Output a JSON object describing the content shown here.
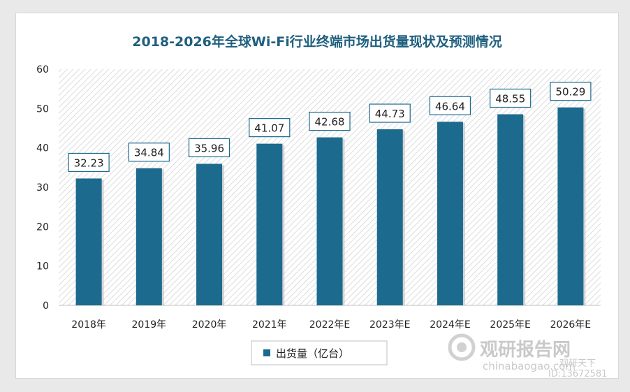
{
  "chart_data": {
    "type": "bar",
    "title": "2018-2026年全球Wi-Fi行业终端市场出货量现状及预测情况",
    "categories": [
      "2018年",
      "2019年",
      "2020年",
      "2021年",
      "2022年E",
      "2023年E",
      "2024年E",
      "2025年E",
      "2026年E"
    ],
    "series": [
      {
        "name": "出货量（亿台）",
        "values": [
          32.23,
          34.84,
          35.96,
          41.07,
          42.68,
          44.73,
          46.64,
          48.55,
          50.29
        ]
      }
    ],
    "data_labels": [
      "32.23",
      "34.84",
      "35.96",
      "41.07",
      "42.68",
      "44.73",
      "46.64",
      "48.55",
      "50.29"
    ],
    "ylim": [
      0,
      60
    ],
    "yticks": [
      0,
      10,
      20,
      30,
      40,
      50,
      60
    ],
    "grid": false,
    "legend_position": "bottom",
    "colors": {
      "bar": "#1c6a8e",
      "title": "#1f5f7f",
      "plot_hatch": "#d9d9d9"
    }
  },
  "watermark": {
    "brand": "观研报告网",
    "url": "chinabaogao.com",
    "account": "观研天下",
    "id": "ID:13672581"
  }
}
